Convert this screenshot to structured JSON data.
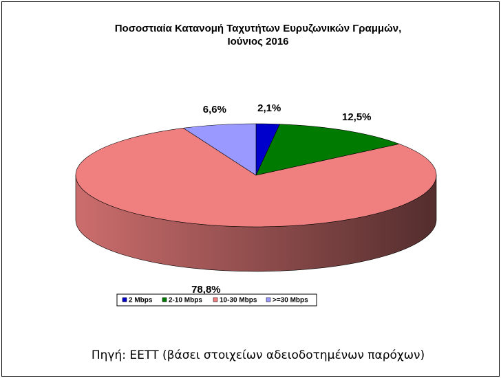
{
  "chart_data": {
    "type": "pie3d",
    "title": "Ποσοστιαία Κατανομή Ταχυτήτων Ευρυζωνικών Γραμμών,",
    "subtitle": "Ιούνιος 2016",
    "categories": [
      "2 Mbps",
      "2-10 Mbps",
      "10-30 Mbps",
      ">=30 Mbps"
    ],
    "values": [
      2.1,
      12.5,
      78.8,
      6.6
    ],
    "value_labels": [
      "2,1%",
      "12,5%",
      "78,8%",
      "6,6%"
    ],
    "colors": [
      "#0000cc",
      "#007a00",
      "#f08080",
      "#9999ff"
    ],
    "legend": "bottom",
    "source": "Πηγή: ΕΕΤΤ (βάσει στοιχείων αδειοδοτημένων παρόχων)"
  }
}
